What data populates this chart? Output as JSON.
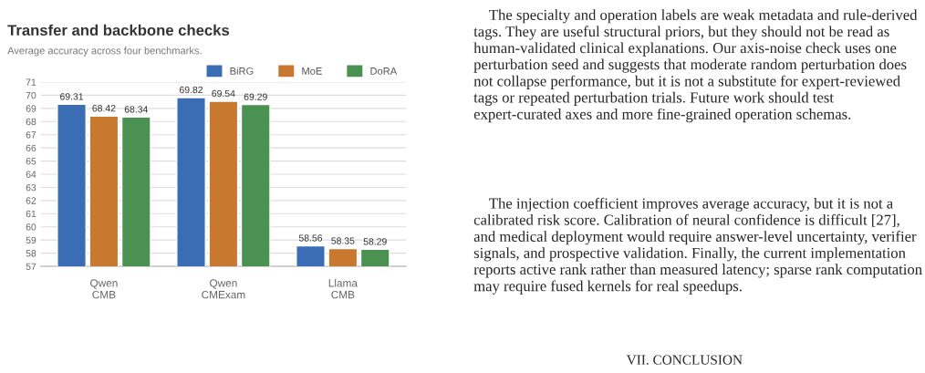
{
  "chart_data": {
    "type": "bar",
    "title": "Transfer and backbone checks",
    "subtitle": "Average accuracy across four benchmarks.",
    "categories": [
      "Qwen\nCMB",
      "Qwen\nCMExam",
      "Llama\nCMB"
    ],
    "series": [
      {
        "name": "BiRG",
        "color": "#3b6db5",
        "values": [
          69.31,
          69.82,
          58.56
        ]
      },
      {
        "name": "MoE",
        "color": "#c8792f",
        "values": [
          68.42,
          69.54,
          58.35
        ]
      },
      {
        "name": "DoRA",
        "color": "#4b9152",
        "values": [
          68.34,
          69.29,
          58.29
        ]
      }
    ],
    "ylim": [
      57,
      71
    ],
    "yticks": [
      57,
      58,
      59,
      60,
      61,
      62,
      63,
      64,
      65,
      66,
      67,
      68,
      69,
      70,
      71
    ],
    "grid": "y",
    "legend": "top right",
    "data_labels": true,
    "annotations": [
      "The specialty and operation labels are weak metadata and rule-derived tags. They are useful structural priors, but they should not be read as human-validated clinical explanations. Our axis-noise check uses one perturbation seed and suggests that moderate random perturbation does not collapse performance, but it is not a substitute for expert-reviewed tags or repeated perturbation trials. Future work should test expert-curated axes and more fine-grained operation schemas.",
      "The injection coefficient improves average accuracy, but it is not a calibrated risk score. Calibration of neural confidence is difficult [27], and medical deployment would require answer-level uncertainty, verifier signals, and prospective validation. Finally, the current implementation reports active rank rather than measured latency; sparse rank computation may require fused kernels for real speedups.",
      "VII. CONCLUSION"
    ]
  }
}
